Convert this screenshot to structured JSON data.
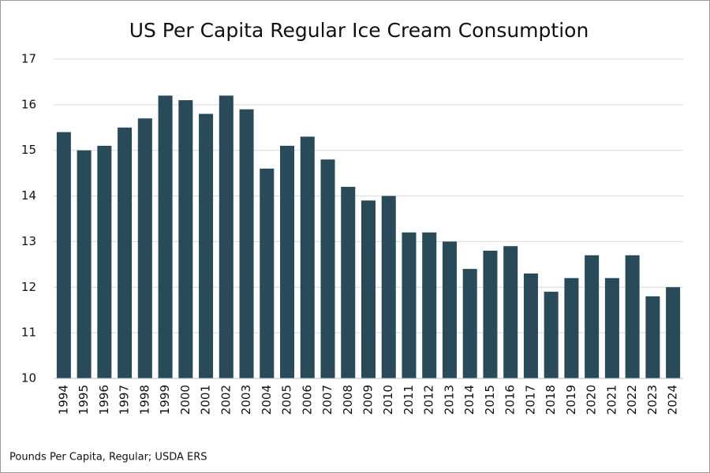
{
  "chart_data": {
    "type": "bar",
    "title": "US Per Capita Regular Ice Cream Consumption",
    "footnote": "Pounds Per Capita, Regular; USDA ERS",
    "categories": [
      "1994",
      "1995",
      "1996",
      "1997",
      "1998",
      "1999",
      "2000",
      "2001",
      "2002",
      "2003",
      "2004",
      "2005",
      "2006",
      "2007",
      "2008",
      "2009",
      "2010",
      "2011",
      "2012",
      "2013",
      "2014",
      "2015",
      "2016",
      "2017",
      "2018",
      "2019",
      "2020",
      "2021",
      "2022",
      "2023",
      "2024"
    ],
    "values": [
      15.4,
      15.0,
      15.1,
      15.5,
      15.7,
      16.2,
      16.1,
      15.8,
      16.2,
      15.9,
      14.6,
      15.1,
      15.3,
      14.8,
      14.2,
      13.9,
      14.0,
      13.2,
      13.2,
      13.0,
      12.4,
      12.8,
      12.9,
      12.3,
      11.9,
      12.2,
      12.7,
      12.2,
      12.7,
      11.8,
      12.0
    ],
    "color": "#284a59",
    "ylim": [
      10,
      17
    ],
    "yticks": [
      10,
      11,
      12,
      13,
      14,
      15,
      16,
      17
    ],
    "grid": true
  }
}
